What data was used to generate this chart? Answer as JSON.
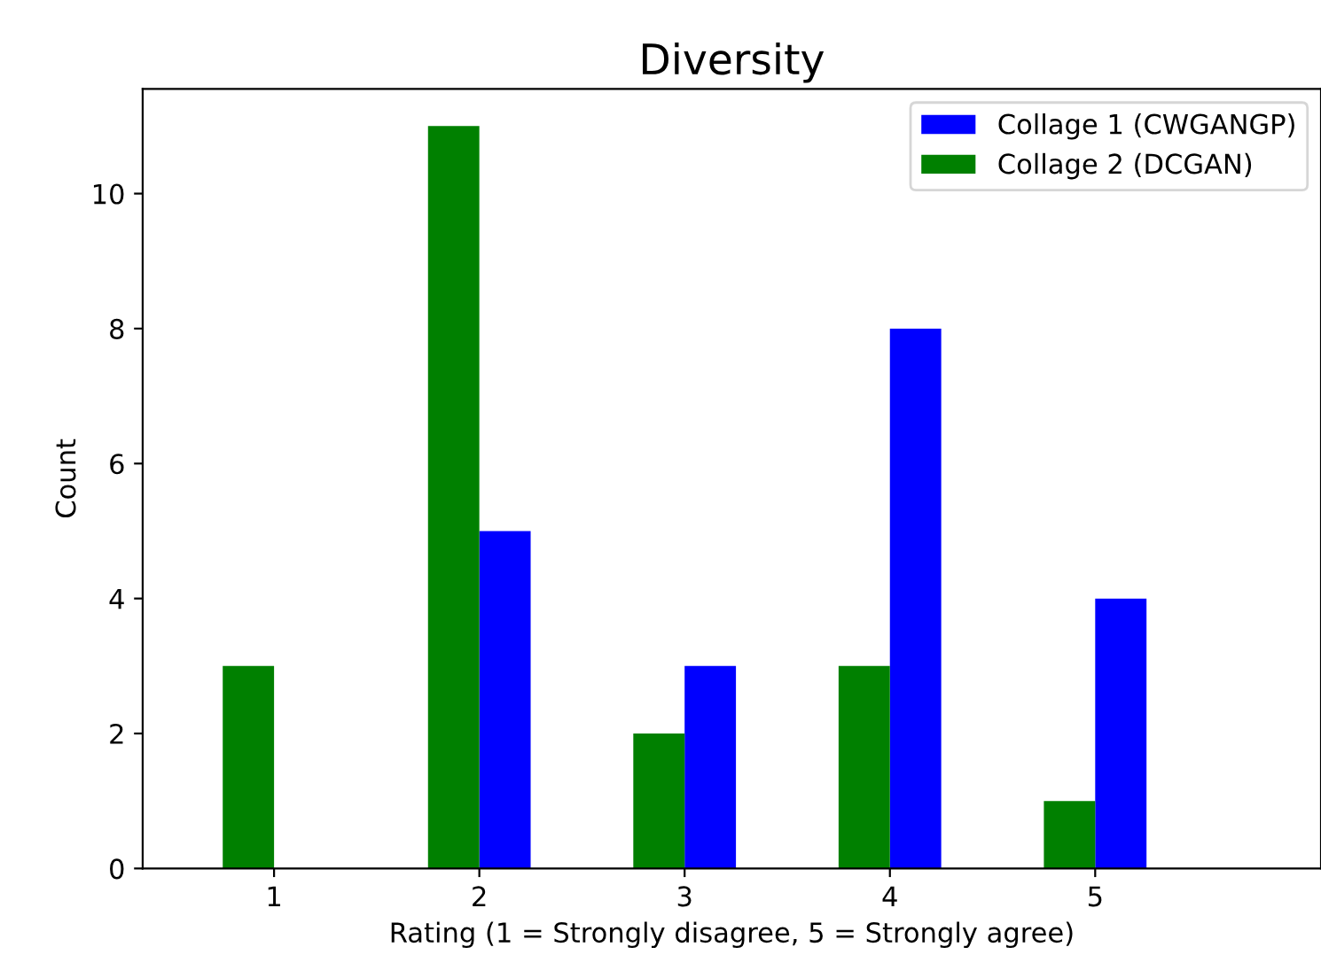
{
  "chart_data": {
    "type": "bar",
    "title": "Diversity",
    "xlabel": "Rating (1 = Strongly disagree, 5 = Strongly agree)",
    "ylabel": "Count",
    "categories": [
      "1",
      "2",
      "3",
      "4",
      "5"
    ],
    "series": [
      {
        "name": "Collage 1 (CWGANGP)",
        "color": "#0000ff",
        "values": [
          0,
          5,
          3,
          8,
          4
        ]
      },
      {
        "name": "Collage 2 (DCGAN)",
        "color": "#008000",
        "values": [
          3,
          11,
          2,
          3,
          1
        ]
      }
    ],
    "ylim": [
      0,
      11.55
    ],
    "yticks": [
      0,
      2,
      4,
      6,
      8,
      10
    ],
    "grid": false,
    "legend": "top right"
  }
}
